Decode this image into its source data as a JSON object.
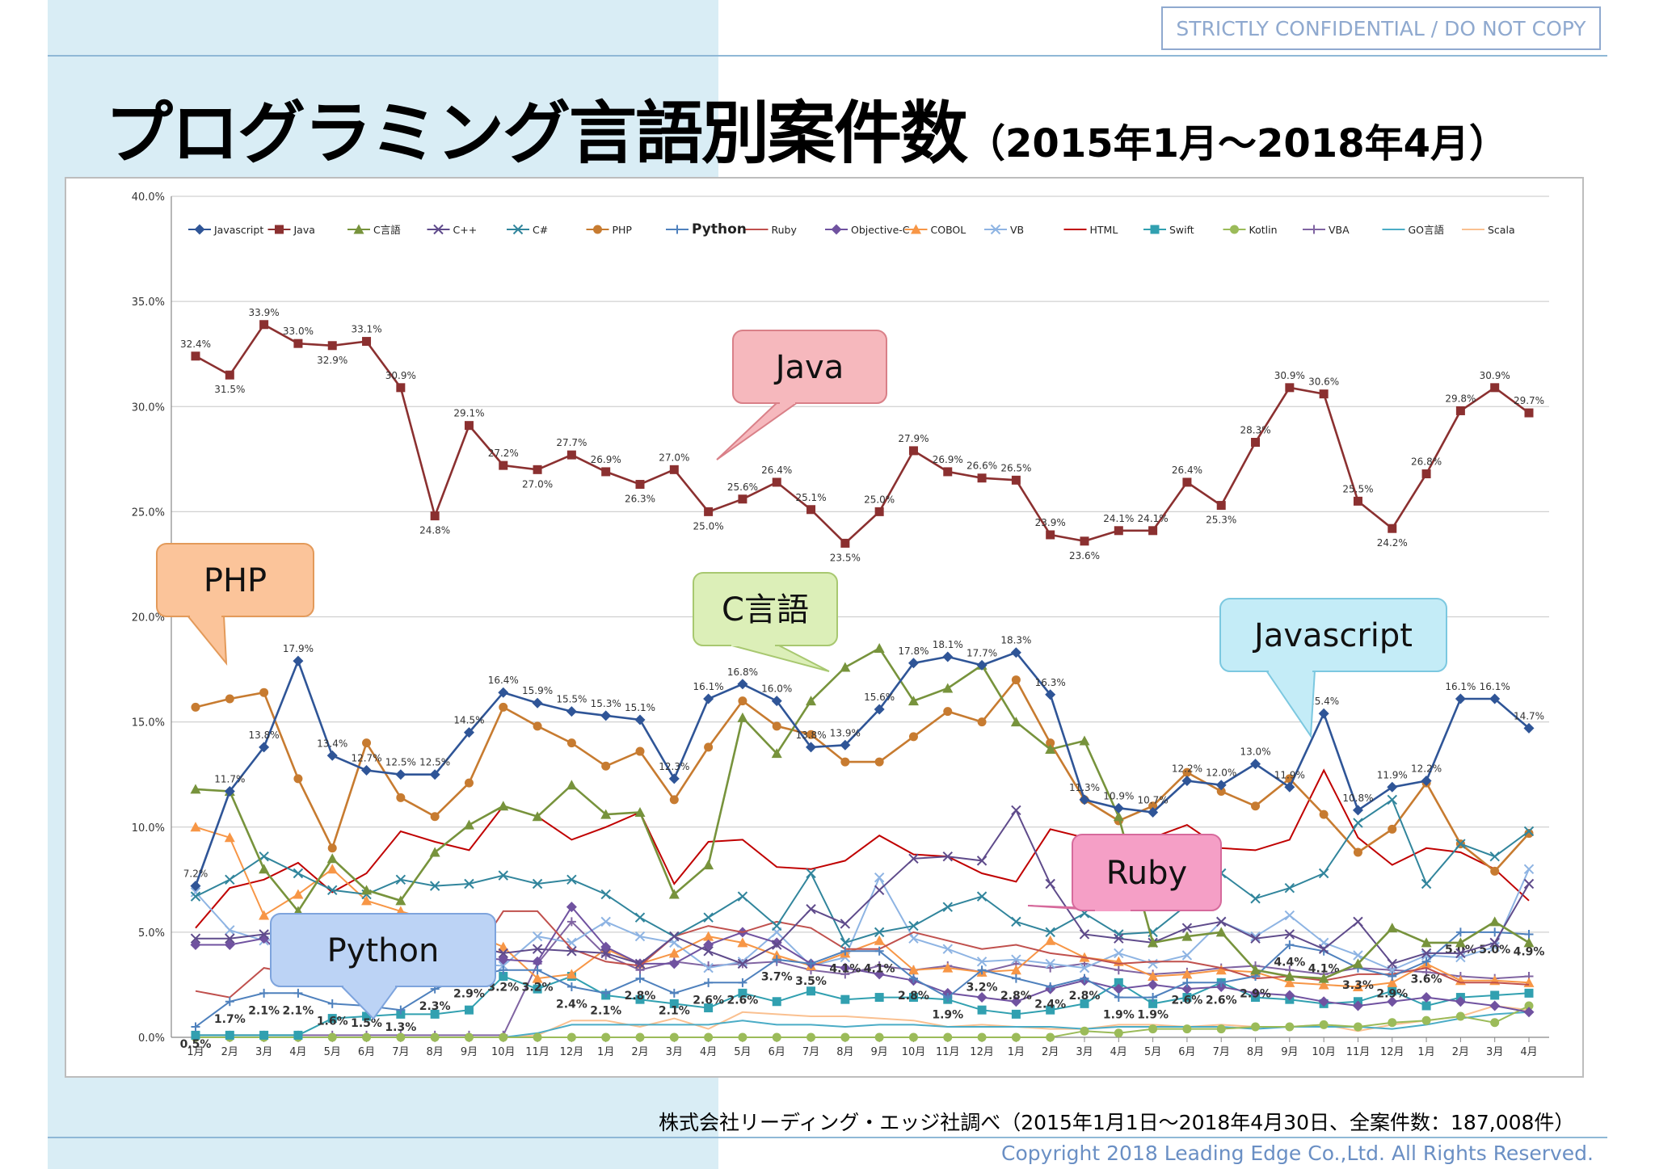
{
  "header": {
    "confidential_label": "STRICTLY CONFIDENTIAL  /  DO NOT COPY",
    "title_main": "プログラミング言語別案件数",
    "title_sub": "（2015年1月～2018年4月）"
  },
  "footer": {
    "source": "株式会社リーディング・エッジ社調べ（2015年1月1日～2018年4月30日、全案件数：187,008件）",
    "copyright": "Copyright 2018 Leading Edge Co.,Ltd. All Rights Reserved."
  },
  "chart_data": {
    "type": "line",
    "title": "",
    "xlabel": "",
    "ylabel": "",
    "ylim": [
      0,
      40
    ],
    "y_ticks": [
      "0.0%",
      "5.0%",
      "10.0%",
      "15.0%",
      "20.0%",
      "25.0%",
      "30.0%",
      "35.0%",
      "40.0%"
    ],
    "grid": "horizontal",
    "legend_position": "top",
    "categories": [
      "1月",
      "2月",
      "3月",
      "4月",
      "5月",
      "6月",
      "7月",
      "8月",
      "9月",
      "10月",
      "11月",
      "12月",
      "1月",
      "2月",
      "3月",
      "4月",
      "5月",
      "6月",
      "7月",
      "8月",
      "9月",
      "10月",
      "11月",
      "12月",
      "1月",
      "2月",
      "3月",
      "4月",
      "5月",
      "6月",
      "7月",
      "8月",
      "9月",
      "10月",
      "11月",
      "12月",
      "1月",
      "2月",
      "3月",
      "4月"
    ],
    "series": [
      {
        "name": "Javascript",
        "color": "#2f5597",
        "marker": "diamond",
        "label_mode": "all",
        "values": [
          7.2,
          11.7,
          13.8,
          17.9,
          13.4,
          12.7,
          12.5,
          12.5,
          14.5,
          16.4,
          15.9,
          15.5,
          15.3,
          15.1,
          12.3,
          16.1,
          16.8,
          16.0,
          13.8,
          13.9,
          15.6,
          17.8,
          18.1,
          17.7,
          18.3,
          16.3,
          11.3,
          10.9,
          10.7,
          12.2,
          12.0,
          13.0,
          11.9,
          15.4,
          10.8,
          11.9,
          12.2,
          16.1,
          16.1,
          14.7
        ]
      },
      {
        "name": "Java",
        "color": "#8b3030",
        "marker": "square",
        "label_mode": "all",
        "values": [
          32.4,
          31.5,
          33.9,
          33.0,
          32.9,
          33.1,
          30.9,
          24.8,
          29.1,
          27.2,
          27.0,
          27.7,
          26.9,
          26.3,
          27.0,
          25.0,
          25.6,
          26.4,
          25.1,
          23.5,
          25.0,
          27.9,
          26.9,
          26.6,
          26.5,
          23.9,
          23.6,
          24.1,
          24.1,
          26.4,
          25.3,
          28.3,
          30.9,
          30.6,
          25.5,
          24.2,
          26.8,
          29.8,
          30.9,
          29.7
        ]
      },
      {
        "name": "C言語",
        "color": "#77933c",
        "marker": "triangle",
        "label_mode": "none",
        "values": [
          11.8,
          11.7,
          8.0,
          6.0,
          8.5,
          7.0,
          6.5,
          8.8,
          10.1,
          11.0,
          10.5,
          12.0,
          10.6,
          10.7,
          6.8,
          8.2,
          15.2,
          13.5,
          16.0,
          17.6,
          18.5,
          16.0,
          16.6,
          17.7,
          15.0,
          13.7,
          14.1,
          10.5,
          4.5,
          4.8,
          5.0,
          3.2,
          2.9,
          2.8,
          3.5,
          5.2,
          4.5,
          4.5,
          5.5,
          4.5
        ]
      },
      {
        "name": "C++",
        "color": "#5f4b8b",
        "marker": "x",
        "label_mode": "none",
        "values": [
          4.7,
          4.7,
          4.9,
          5.1,
          5.0,
          4.8,
          4.7,
          4.6,
          4.4,
          4.0,
          4.2,
          4.1,
          4.0,
          3.5,
          4.8,
          4.1,
          3.5,
          4.4,
          6.1,
          5.4,
          7.0,
          8.5,
          8.6,
          8.4,
          10.8,
          7.3,
          4.9,
          4.7,
          4.5,
          5.2,
          5.5,
          4.7,
          4.9,
          4.2,
          5.5,
          3.5,
          4.0,
          4.0,
          4.5,
          7.3
        ]
      },
      {
        "name": "C#",
        "color": "#31859c",
        "marker": "x",
        "label_mode": "none",
        "values": [
          6.7,
          7.5,
          8.6,
          7.8,
          7.0,
          6.8,
          7.5,
          7.2,
          7.3,
          7.7,
          7.3,
          7.5,
          6.8,
          5.7,
          4.8,
          5.7,
          6.7,
          5.3,
          7.8,
          4.5,
          5.0,
          5.3,
          6.2,
          6.7,
          5.5,
          5.0,
          5.9,
          4.9,
          5.0,
          6.3,
          7.8,
          6.6,
          7.1,
          7.8,
          10.2,
          11.3,
          7.3,
          9.2,
          8.6,
          9.8
        ]
      },
      {
        "name": "PHP",
        "color": "#c77b30",
        "marker": "circle",
        "label_mode": "none",
        "values": [
          15.7,
          16.1,
          16.4,
          12.3,
          9.0,
          14.0,
          11.4,
          10.5,
          12.1,
          15.7,
          14.8,
          14.0,
          12.9,
          13.6,
          11.3,
          13.8,
          16.0,
          14.8,
          14.4,
          13.1,
          13.1,
          14.3,
          15.5,
          15.0,
          17.0,
          14.0,
          11.3,
          10.3,
          11.0,
          12.6,
          11.7,
          11.0,
          12.3,
          10.6,
          8.8,
          9.9,
          12.1,
          9.2,
          7.9,
          9.7
        ]
      },
      {
        "name": "Python",
        "color": "#4f81bd",
        "marker": "plus",
        "label_mode": "all",
        "values": [
          0.5,
          1.7,
          2.1,
          2.1,
          1.6,
          1.5,
          1.3,
          2.3,
          2.9,
          3.2,
          3.2,
          2.4,
          2.1,
          2.8,
          2.1,
          2.6,
          2.6,
          3.7,
          3.5,
          4.1,
          4.1,
          2.8,
          1.9,
          3.2,
          2.8,
          2.4,
          2.8,
          1.9,
          1.9,
          2.6,
          2.6,
          2.9,
          4.4,
          4.1,
          3.3,
          2.9,
          3.6,
          5.0,
          5.0,
          4.9
        ]
      },
      {
        "name": "Ruby",
        "color": "#c0504d",
        "marker": "none",
        "label_mode": "none",
        "values": [
          2.2,
          1.9,
          3.3,
          3.0,
          3.1,
          3.4,
          3.5,
          3.3,
          3.5,
          6.0,
          6.0,
          4.2,
          3.6,
          3.4,
          4.8,
          5.3,
          5.0,
          5.5,
          5.2,
          4.2,
          4.2,
          5.0,
          4.6,
          4.2,
          4.4,
          4.0,
          3.8,
          3.5,
          3.6,
          3.6,
          3.3,
          2.8,
          2.9,
          2.7,
          3.0,
          3.0,
          3.3,
          2.6,
          2.6,
          2.5
        ]
      },
      {
        "name": "Objective-C",
        "color": "#7052a0",
        "marker": "diamond",
        "label_mode": "none",
        "values": [
          4.4,
          4.4,
          4.7,
          3.2,
          3.2,
          3.0,
          3.4,
          4.1,
          3.8,
          3.7,
          3.6,
          6.2,
          4.3,
          3.5,
          3.5,
          4.4,
          5.0,
          4.5,
          3.5,
          3.3,
          3.0,
          2.7,
          2.1,
          1.9,
          1.7,
          2.3,
          2.7,
          2.3,
          2.5,
          2.3,
          2.4,
          2.1,
          2.0,
          1.7,
          1.5,
          1.7,
          1.9,
          1.7,
          1.5,
          1.2
        ]
      },
      {
        "name": "COBOL",
        "color": "#f79646",
        "marker": "triangle",
        "label_mode": "none",
        "values": [
          10.0,
          9.5,
          5.8,
          6.8,
          8.0,
          6.5,
          6.0,
          5.5,
          5.0,
          4.3,
          2.8,
          3.0,
          4.2,
          3.5,
          4.0,
          4.8,
          4.5,
          3.9,
          3.4,
          4.0,
          4.6,
          3.2,
          3.3,
          3.1,
          3.2,
          4.6,
          3.8,
          3.6,
          2.9,
          3.0,
          3.2,
          3.1,
          2.6,
          2.5,
          2.4,
          2.6,
          3.5,
          2.7,
          2.7,
          2.6
        ]
      },
      {
        "name": "VB",
        "color": "#8eb4e3",
        "marker": "x",
        "label_mode": "none",
        "values": [
          6.9,
          5.1,
          4.6,
          4.8,
          4.6,
          4.5,
          3.5,
          3.7,
          3.5,
          3.4,
          4.8,
          4.5,
          5.5,
          4.8,
          4.5,
          3.3,
          3.6,
          5.0,
          3.4,
          3.8,
          7.6,
          4.7,
          4.2,
          3.6,
          3.7,
          3.5,
          3.3,
          4.0,
          3.5,
          3.9,
          5.5,
          4.8,
          5.8,
          4.5,
          3.9,
          3.2,
          3.9,
          3.8,
          4.3,
          8.0
        ]
      },
      {
        "name": "HTML",
        "color": "#c00000",
        "marker": "none",
        "label_mode": "none",
        "values": [
          5.2,
          7.1,
          7.5,
          8.3,
          6.9,
          7.8,
          9.8,
          9.3,
          8.9,
          11.0,
          10.5,
          9.4,
          10.0,
          10.7,
          7.3,
          9.3,
          9.4,
          8.1,
          8.0,
          8.4,
          9.6,
          8.7,
          8.6,
          7.8,
          7.4,
          9.9,
          9.5,
          9.0,
          9.5,
          10.1,
          9.0,
          8.9,
          9.4,
          12.7,
          9.5,
          8.2,
          9.0,
          8.8,
          8.0,
          6.5
        ]
      },
      {
        "name": "Swift",
        "color": "#31a0b0",
        "marker": "square",
        "label_mode": "none",
        "values": [
          0.1,
          0.1,
          0.1,
          0.1,
          0.9,
          1.0,
          1.1,
          1.1,
          1.3,
          2.9,
          2.3,
          2.9,
          2.0,
          1.8,
          1.6,
          1.4,
          2.1,
          1.7,
          2.2,
          1.8,
          1.9,
          1.9,
          1.8,
          1.3,
          1.1,
          1.3,
          1.6,
          2.6,
          1.6,
          1.9,
          2.6,
          1.9,
          1.8,
          1.6,
          1.7,
          2.2,
          1.5,
          1.9,
          2.0,
          2.1
        ]
      },
      {
        "name": "Kotlin",
        "color": "#9bbb59",
        "marker": "circle",
        "label_mode": "none",
        "values": [
          0.0,
          0.0,
          0.0,
          0.0,
          0.0,
          0.0,
          0.0,
          0.0,
          0.0,
          0.0,
          0.0,
          0.0,
          0.0,
          0.0,
          0.0,
          0.0,
          0.0,
          0.0,
          0.0,
          0.0,
          0.0,
          0.0,
          0.0,
          0.0,
          0.0,
          0.0,
          0.3,
          0.2,
          0.4,
          0.4,
          0.4,
          0.5,
          0.5,
          0.6,
          0.5,
          0.7,
          0.8,
          1.0,
          0.7,
          1.5
        ]
      },
      {
        "name": "VBA",
        "color": "#8064a2",
        "marker": "plus",
        "label_mode": "none",
        "values": [
          0.1,
          0.1,
          0.1,
          0.1,
          0.1,
          0.1,
          0.1,
          0.1,
          0.1,
          0.1,
          3.5,
          5.5,
          3.9,
          3.2,
          3.6,
          3.4,
          3.5,
          3.6,
          3.2,
          3.0,
          3.4,
          3.2,
          3.4,
          3.1,
          3.5,
          3.3,
          3.5,
          3.2,
          3.0,
          3.1,
          3.3,
          3.4,
          3.2,
          3.0,
          3.3,
          3.2,
          3.1,
          2.9,
          2.8,
          2.9
        ]
      },
      {
        "name": "GO言語",
        "color": "#4bacc6",
        "marker": "none",
        "label_mode": "none",
        "values": [
          0.0,
          0.0,
          0.0,
          0.0,
          0.0,
          0.0,
          0.0,
          0.0,
          0.0,
          0.0,
          0.2,
          0.6,
          0.6,
          0.6,
          0.6,
          0.6,
          0.8,
          0.6,
          0.6,
          0.5,
          0.6,
          0.6,
          0.5,
          0.5,
          0.5,
          0.5,
          0.4,
          0.5,
          0.5,
          0.5,
          0.5,
          0.4,
          0.5,
          0.5,
          0.5,
          0.4,
          0.6,
          0.9,
          1.1,
          1.2
        ]
      },
      {
        "name": "Scala",
        "color": "#fac090",
        "marker": "none",
        "label_mode": "none",
        "values": [
          0.0,
          0.0,
          0.0,
          0.0,
          0.0,
          0.0,
          0.0,
          0.0,
          0.0,
          0.0,
          0.1,
          0.8,
          0.8,
          0.5,
          0.9,
          0.4,
          1.2,
          1.1,
          1.0,
          1.0,
          0.9,
          0.8,
          0.5,
          0.6,
          0.5,
          0.4,
          0.4,
          0.6,
          0.6,
          0.5,
          0.6,
          0.5,
          0.5,
          0.6,
          0.3,
          0.6,
          0.8,
          1.0,
          1.5,
          1.3
        ]
      }
    ],
    "callouts": [
      {
        "text": "Java",
        "fill": "#f6b8bd",
        "stroke": "#d98088"
      },
      {
        "text": "PHP",
        "fill": "#fbc49a",
        "stroke": "#e39a5a"
      },
      {
        "text": "C言語",
        "fill": "#dcefb8",
        "stroke": "#a8c870"
      },
      {
        "text": "Javascript",
        "fill": "#c4ecf7",
        "stroke": "#7cc8e0"
      },
      {
        "text": "Ruby",
        "fill": "#f59fc6",
        "stroke": "#d66a9c"
      },
      {
        "text": "Python",
        "fill": "#bcd3f5",
        "stroke": "#7ea4dd"
      }
    ]
  }
}
